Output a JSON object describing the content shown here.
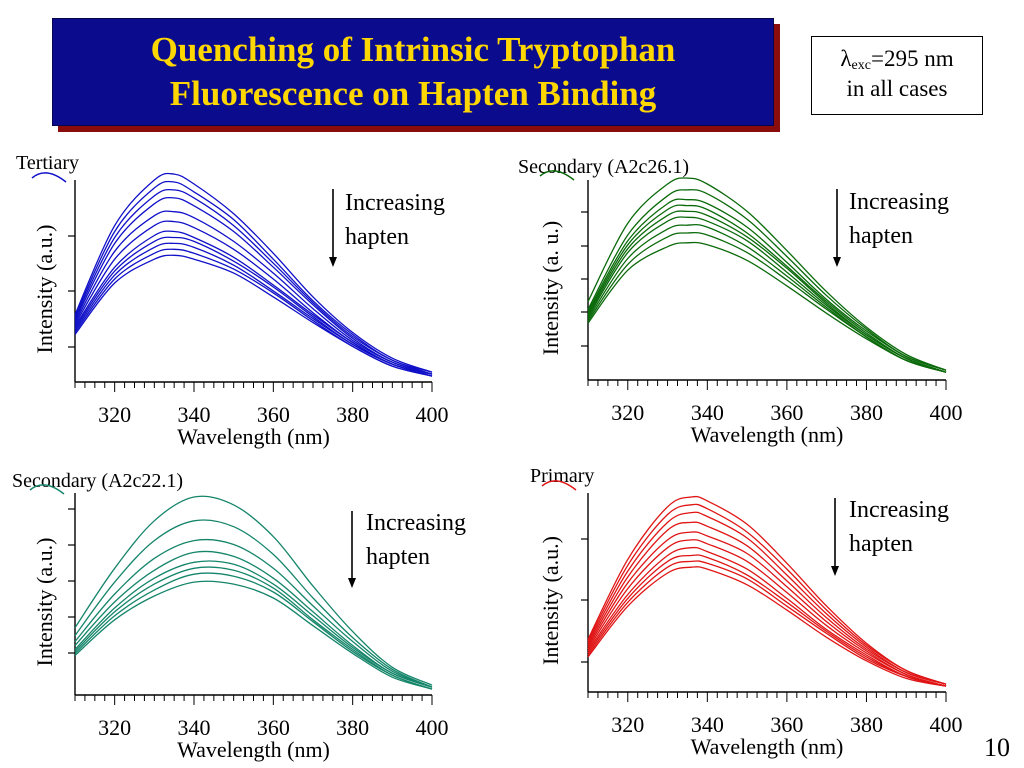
{
  "slide": {
    "title_lines": [
      "Quenching of Intrinsic Tryptophan",
      "Fluorescence on Hapten Binding"
    ],
    "excitation": {
      "symbol": "λ",
      "subscript": "exc",
      "value": "=295 nm",
      "line2": "in all cases"
    },
    "page_number": "10"
  },
  "chart_data": [
    {
      "type": "line",
      "panel_label": "Tertiary",
      "color": "#1010c8",
      "xlabel": "Wavelength (nm)",
      "ylabel": "Intensity (a.u.)",
      "xlim": [
        310,
        400
      ],
      "ylim": [
        0,
        1
      ],
      "xticks": [
        320,
        340,
        360,
        380,
        400
      ],
      "annotation": [
        "Increasing",
        "hapten"
      ],
      "x": [
        310,
        320,
        330,
        335,
        340,
        350,
        360,
        370,
        380,
        390,
        400
      ],
      "series": [
        {
          "values": [
            0.34,
            0.79,
            1.02,
            1.05,
            1.0,
            0.85,
            0.65,
            0.43,
            0.25,
            0.12,
            0.05
          ]
        },
        {
          "values": [
            0.33,
            0.76,
            0.98,
            1.01,
            0.96,
            0.82,
            0.62,
            0.41,
            0.24,
            0.11,
            0.05
          ]
        },
        {
          "values": [
            0.32,
            0.73,
            0.94,
            0.97,
            0.93,
            0.79,
            0.6,
            0.4,
            0.23,
            0.11,
            0.04
          ]
        },
        {
          "values": [
            0.31,
            0.7,
            0.9,
            0.93,
            0.89,
            0.76,
            0.58,
            0.39,
            0.22,
            0.1,
            0.04
          ]
        },
        {
          "values": [
            0.3,
            0.66,
            0.84,
            0.86,
            0.83,
            0.71,
            0.55,
            0.37,
            0.21,
            0.1,
            0.04
          ]
        },
        {
          "values": [
            0.29,
            0.62,
            0.79,
            0.81,
            0.78,
            0.67,
            0.52,
            0.35,
            0.2,
            0.09,
            0.04
          ]
        },
        {
          "values": [
            0.28,
            0.58,
            0.74,
            0.76,
            0.73,
            0.63,
            0.49,
            0.34,
            0.2,
            0.09,
            0.04
          ]
        },
        {
          "values": [
            0.27,
            0.56,
            0.71,
            0.73,
            0.71,
            0.61,
            0.48,
            0.33,
            0.19,
            0.09,
            0.03
          ]
        },
        {
          "values": [
            0.26,
            0.54,
            0.68,
            0.7,
            0.68,
            0.59,
            0.46,
            0.32,
            0.19,
            0.09,
            0.03
          ]
        },
        {
          "values": [
            0.25,
            0.52,
            0.65,
            0.67,
            0.65,
            0.57,
            0.45,
            0.31,
            0.18,
            0.08,
            0.03
          ]
        },
        {
          "values": [
            0.24,
            0.5,
            0.62,
            0.64,
            0.62,
            0.55,
            0.43,
            0.3,
            0.18,
            0.08,
            0.03
          ]
        }
      ]
    },
    {
      "type": "line",
      "panel_label": "Secondary (A2c26.1)",
      "color": "#0a6a0a",
      "xlabel": "Wavelength (nm)",
      "ylabel": "Intensity (a. u.)",
      "xlim": [
        310,
        400
      ],
      "ylim": [
        0,
        1
      ],
      "xticks": [
        320,
        340,
        360,
        380,
        400
      ],
      "annotation": [
        "Increasing",
        "hapten"
      ],
      "x": [
        310,
        320,
        330,
        335,
        340,
        350,
        360,
        370,
        380,
        390,
        400
      ],
      "series": [
        {
          "values": [
            0.4,
            0.8,
            1.0,
            1.03,
            1.0,
            0.86,
            0.66,
            0.45,
            0.27,
            0.13,
            0.05
          ]
        },
        {
          "values": [
            0.36,
            0.74,
            0.94,
            0.97,
            0.95,
            0.82,
            0.63,
            0.43,
            0.26,
            0.12,
            0.05
          ]
        },
        {
          "values": [
            0.35,
            0.71,
            0.9,
            0.92,
            0.9,
            0.78,
            0.6,
            0.41,
            0.25,
            0.12,
            0.05
          ]
        },
        {
          "values": [
            0.34,
            0.69,
            0.87,
            0.89,
            0.87,
            0.75,
            0.58,
            0.4,
            0.24,
            0.11,
            0.04
          ]
        },
        {
          "values": [
            0.33,
            0.67,
            0.84,
            0.86,
            0.84,
            0.73,
            0.57,
            0.39,
            0.23,
            0.11,
            0.04
          ]
        },
        {
          "values": [
            0.32,
            0.65,
            0.81,
            0.83,
            0.81,
            0.71,
            0.55,
            0.38,
            0.23,
            0.11,
            0.04
          ]
        },
        {
          "values": [
            0.31,
            0.62,
            0.77,
            0.79,
            0.78,
            0.68,
            0.53,
            0.37,
            0.22,
            0.1,
            0.04
          ]
        },
        {
          "values": [
            0.3,
            0.59,
            0.73,
            0.75,
            0.74,
            0.65,
            0.51,
            0.36,
            0.22,
            0.1,
            0.04
          ]
        },
        {
          "values": [
            0.29,
            0.56,
            0.68,
            0.7,
            0.69,
            0.61,
            0.48,
            0.34,
            0.21,
            0.1,
            0.04
          ]
        }
      ]
    },
    {
      "type": "line",
      "panel_label": "Secondary (A2c22.1)",
      "color": "#15856a",
      "xlabel": "Wavelength (nm)",
      "ylabel": "Intensity (a.u.)",
      "xlim": [
        310,
        400
      ],
      "ylim": [
        0,
        1
      ],
      "xticks": [
        320,
        340,
        360,
        380,
        400
      ],
      "annotation": [
        "Increasing",
        "hapten"
      ],
      "x": [
        310,
        320,
        330,
        340,
        350,
        360,
        370,
        380,
        390,
        400
      ],
      "series": [
        {
          "values": [
            0.34,
            0.64,
            0.88,
            1.0,
            0.96,
            0.8,
            0.55,
            0.32,
            0.14,
            0.05
          ]
        },
        {
          "values": [
            0.3,
            0.57,
            0.78,
            0.88,
            0.85,
            0.71,
            0.49,
            0.29,
            0.13,
            0.04
          ]
        },
        {
          "values": [
            0.27,
            0.51,
            0.69,
            0.78,
            0.76,
            0.64,
            0.45,
            0.27,
            0.12,
            0.04
          ]
        },
        {
          "values": [
            0.25,
            0.47,
            0.63,
            0.72,
            0.7,
            0.59,
            0.42,
            0.25,
            0.11,
            0.04
          ]
        },
        {
          "values": [
            0.23,
            0.44,
            0.59,
            0.67,
            0.66,
            0.56,
            0.4,
            0.24,
            0.11,
            0.04
          ]
        },
        {
          "values": [
            0.22,
            0.42,
            0.56,
            0.64,
            0.63,
            0.54,
            0.38,
            0.23,
            0.1,
            0.03
          ]
        },
        {
          "values": [
            0.21,
            0.4,
            0.53,
            0.61,
            0.6,
            0.52,
            0.37,
            0.22,
            0.1,
            0.03
          ]
        },
        {
          "values": [
            0.2,
            0.38,
            0.5,
            0.57,
            0.56,
            0.49,
            0.35,
            0.21,
            0.09,
            0.03
          ]
        }
      ]
    },
    {
      "type": "line",
      "panel_label": "Primary",
      "color": "#e01515",
      "xlabel": "Wavelength (nm)",
      "ylabel": "Intensity (a.u.)",
      "xlim": [
        310,
        400
      ],
      "ylim": [
        0,
        1
      ],
      "xticks": [
        320,
        340,
        360,
        380,
        400
      ],
      "annotation": [
        "Increasing",
        "hapten"
      ],
      "x": [
        310,
        320,
        330,
        336,
        340,
        350,
        360,
        370,
        380,
        390,
        400
      ],
      "series": [
        {
          "values": [
            0.27,
            0.68,
            0.95,
            1.0,
            0.98,
            0.86,
            0.66,
            0.44,
            0.25,
            0.11,
            0.04
          ]
        },
        {
          "values": [
            0.26,
            0.65,
            0.91,
            0.96,
            0.94,
            0.82,
            0.63,
            0.42,
            0.24,
            0.11,
            0.04
          ]
        },
        {
          "values": [
            0.25,
            0.62,
            0.87,
            0.92,
            0.9,
            0.79,
            0.6,
            0.4,
            0.23,
            0.1,
            0.04
          ]
        },
        {
          "values": [
            0.24,
            0.59,
            0.83,
            0.87,
            0.85,
            0.75,
            0.57,
            0.38,
            0.22,
            0.1,
            0.04
          ]
        },
        {
          "values": [
            0.23,
            0.56,
            0.78,
            0.82,
            0.8,
            0.71,
            0.54,
            0.36,
            0.21,
            0.09,
            0.03
          ]
        },
        {
          "values": [
            0.22,
            0.53,
            0.74,
            0.78,
            0.76,
            0.67,
            0.51,
            0.34,
            0.2,
            0.09,
            0.03
          ]
        },
        {
          "values": [
            0.21,
            0.5,
            0.7,
            0.74,
            0.72,
            0.63,
            0.48,
            0.32,
            0.19,
            0.08,
            0.03
          ]
        },
        {
          "values": [
            0.2,
            0.48,
            0.67,
            0.7,
            0.69,
            0.6,
            0.46,
            0.31,
            0.18,
            0.08,
            0.03
          ]
        },
        {
          "values": [
            0.19,
            0.46,
            0.64,
            0.67,
            0.66,
            0.58,
            0.44,
            0.3,
            0.17,
            0.08,
            0.03
          ]
        },
        {
          "values": [
            0.18,
            0.44,
            0.61,
            0.64,
            0.63,
            0.55,
            0.42,
            0.28,
            0.16,
            0.07,
            0.03
          ]
        }
      ]
    }
  ]
}
